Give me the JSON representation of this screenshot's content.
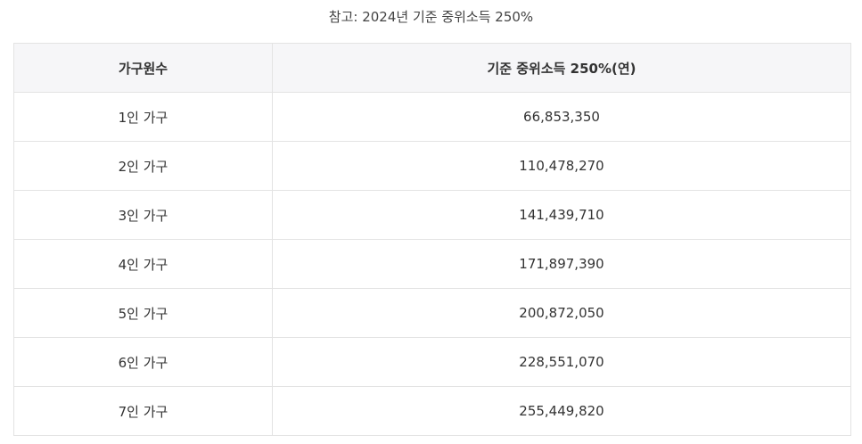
{
  "caption": "참고: 2024년 기준 중위소득 250%",
  "table": {
    "headers": [
      "가구원수",
      "기준 중위소득 250%(연)"
    ],
    "rows": [
      {
        "household": "1인 가구",
        "income": "66,853,350"
      },
      {
        "household": "2인 가구",
        "income": "110,478,270"
      },
      {
        "household": "3인 가구",
        "income": "141,439,710"
      },
      {
        "household": "4인 가구",
        "income": "171,897,390"
      },
      {
        "household": "5인 가구",
        "income": "200,872,050"
      },
      {
        "household": "6인 가구",
        "income": "228,551,070"
      },
      {
        "household": "7인 가구",
        "income": "255,449,820"
      }
    ]
  }
}
